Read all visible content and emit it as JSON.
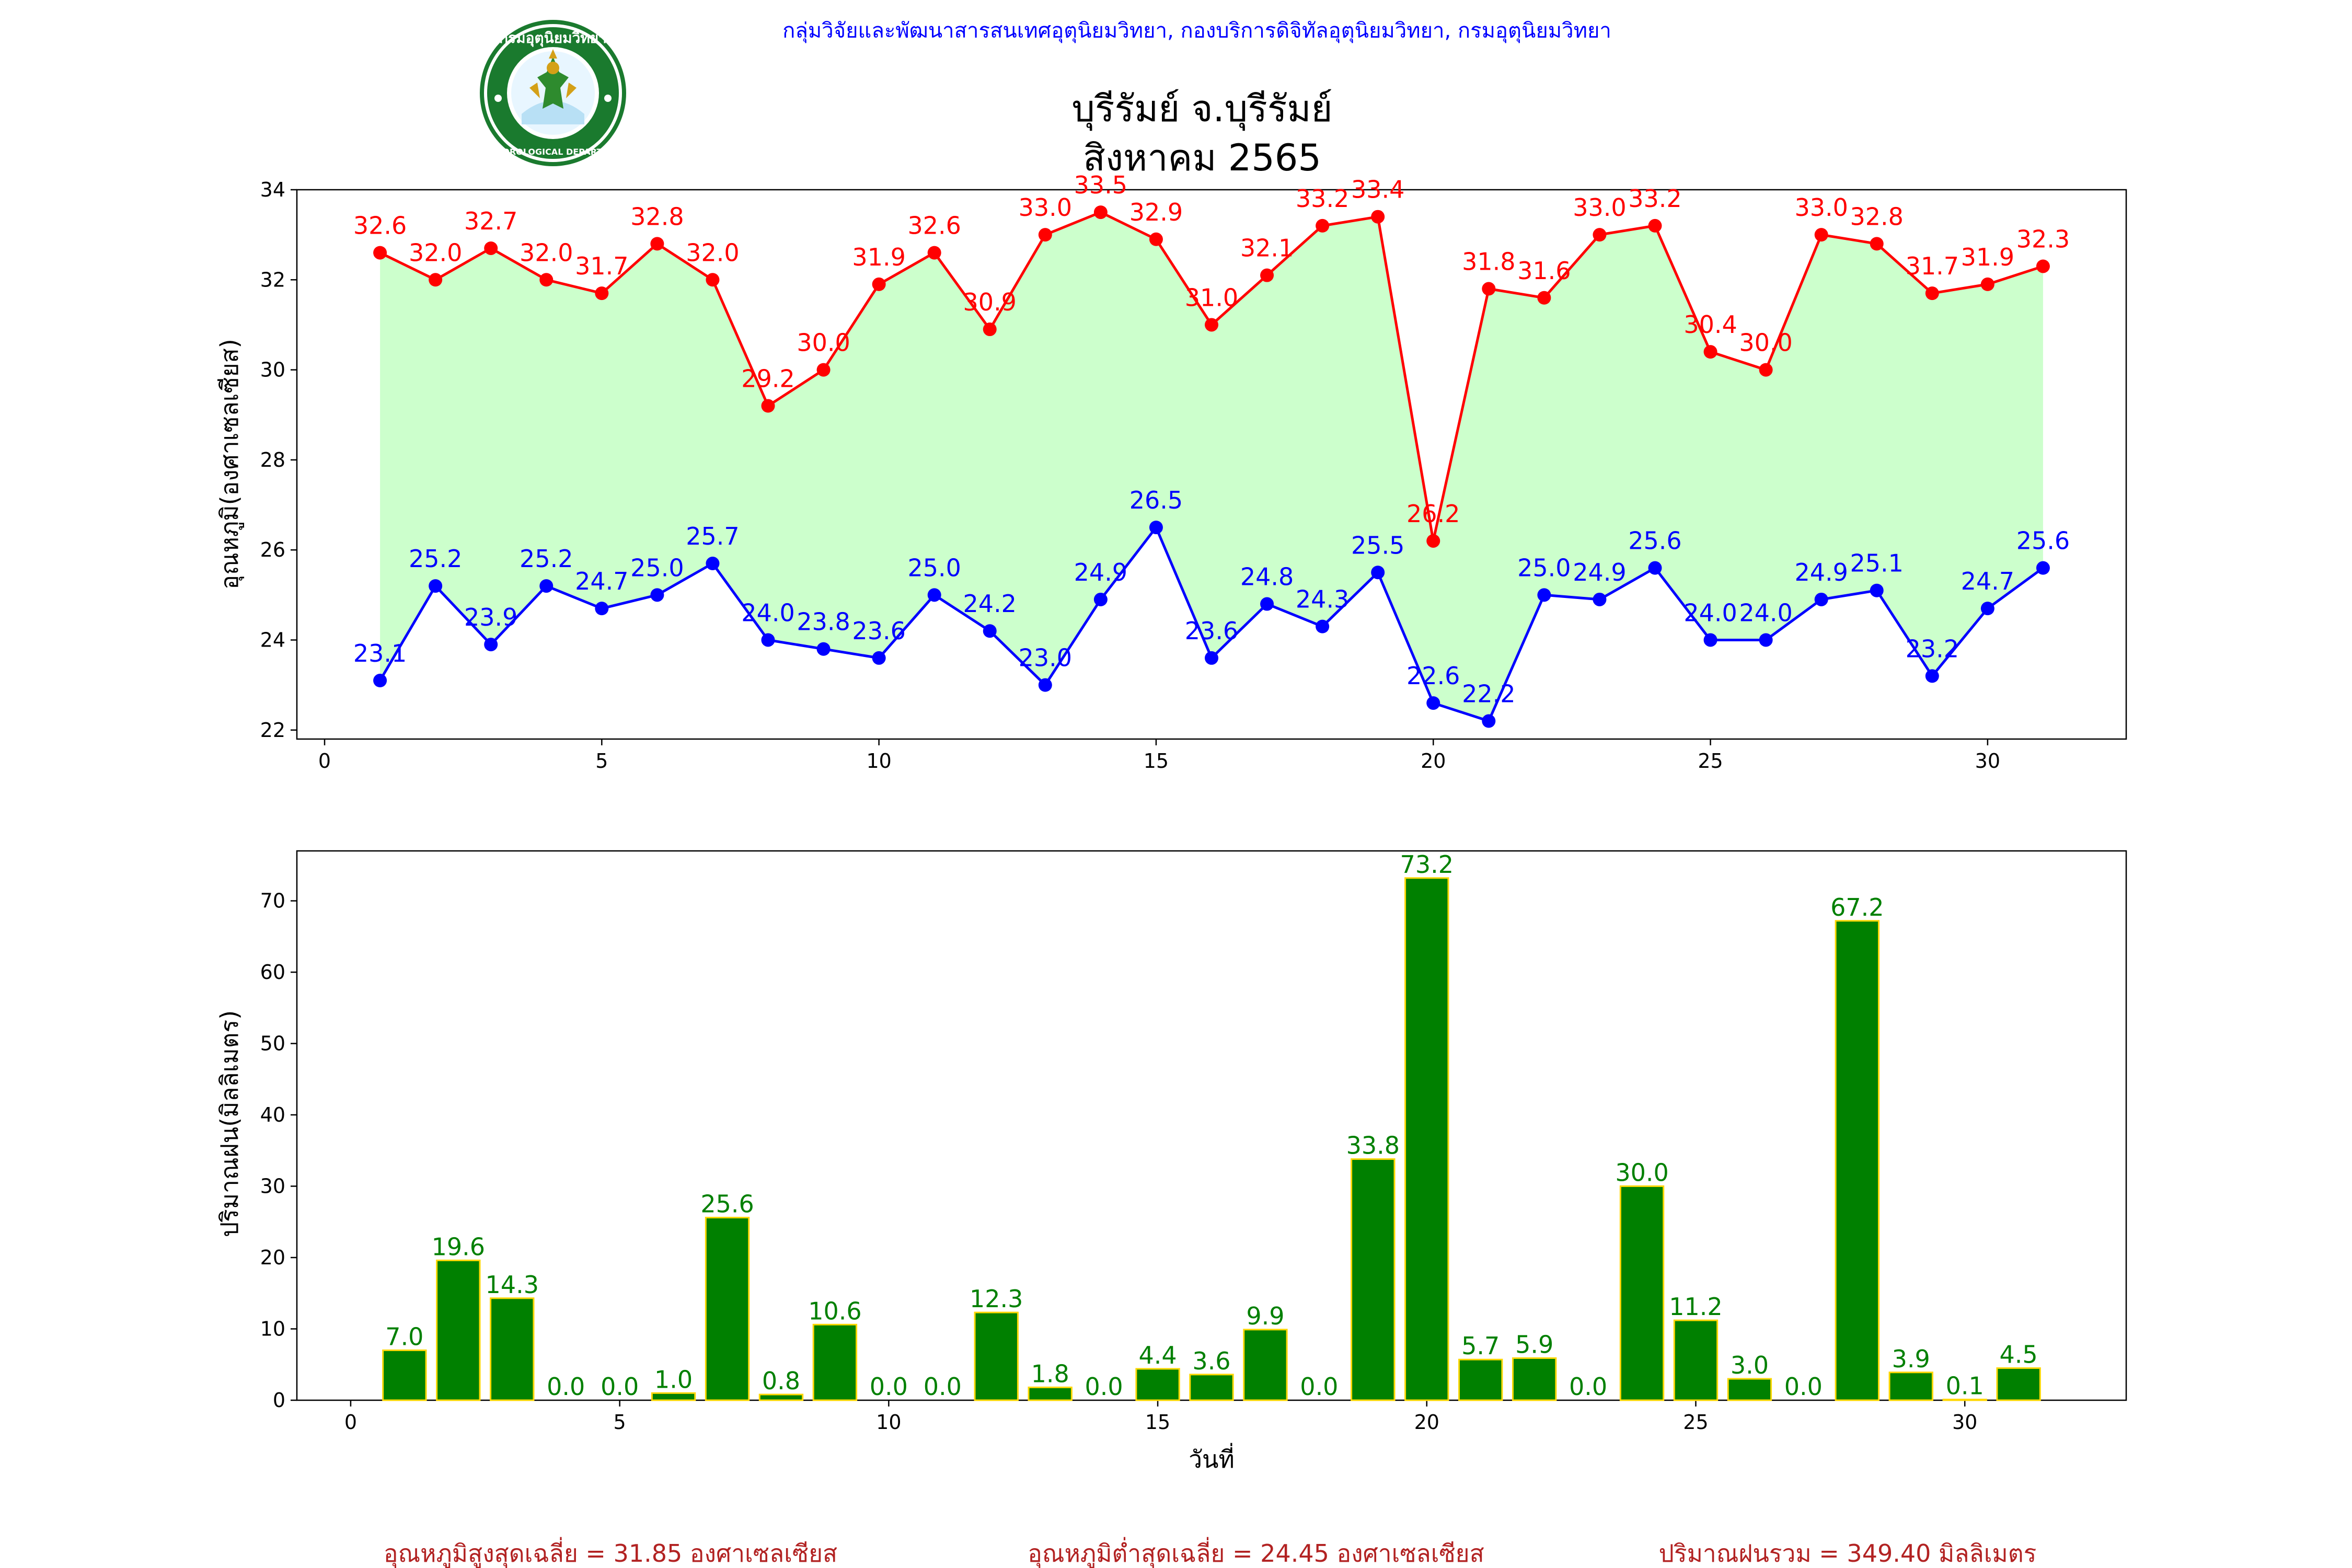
{
  "header": {
    "organization": "กลุ่มวิจัยและพัฒนาสารสนเทศอุตุนิยมวิทยา, กองบริการดิจิทัลอุตุนิยมวิทยา, กรมอุตุนิยมวิทยา",
    "title_line1": "บุรีรัมย์ จ.บุรีรัมย์",
    "title_line2": "สิงหาคม 2565",
    "logo_text_top": "กรมอุตุนิยมวิทยา",
    "logo_text_bottom": "METEOROLOGICAL DEPARTMENT"
  },
  "summary": {
    "avg_max": "อุณหภูมิสูงสุดเฉลี่ย = 31.85 องศาเซลเซียส",
    "avg_min": "อุณหภูมิต่ำสุดเฉลี่ย = 24.45 องศาเซลเซียส",
    "total_rain": "ปริมาณฝนรวม = 349.40 มิลลิเมตร"
  },
  "colors": {
    "max_line": "#ff0000",
    "min_line": "#0000ff",
    "fill": "#ccffcc",
    "bar": "#008000",
    "bar_edge": "#ffd700",
    "bar_label": "#008000",
    "header_text": "#0000ff",
    "summary_text": "#b22222"
  },
  "chart_data": [
    {
      "type": "line",
      "ylabel": "อุณหภูมิ(องศาเซลเซียส)",
      "xlabel": "",
      "xlim": [
        -0.5,
        32.5
      ],
      "ylim": [
        21.8,
        34
      ],
      "xticks": [
        0,
        5,
        10,
        15,
        20,
        25,
        30
      ],
      "yticks": [
        22,
        24,
        26,
        28,
        30,
        32,
        34
      ],
      "x": [
        1,
        2,
        3,
        4,
        5,
        6,
        7,
        8,
        9,
        10,
        11,
        12,
        13,
        14,
        15,
        16,
        17,
        18,
        19,
        20,
        21,
        22,
        23,
        24,
        25,
        26,
        27,
        28,
        29,
        30,
        31
      ],
      "series": [
        {
          "key": "max",
          "values": [
            32.6,
            32.0,
            32.7,
            32.0,
            31.7,
            32.8,
            32.0,
            29.2,
            30.0,
            31.9,
            32.6,
            30.9,
            33.0,
            33.5,
            32.9,
            31.0,
            32.1,
            33.2,
            33.4,
            26.2,
            31.8,
            31.6,
            33.0,
            33.2,
            30.4,
            30.0,
            33.0,
            32.8,
            31.7,
            31.9,
            32.3
          ]
        },
        {
          "key": "min",
          "values": [
            23.1,
            25.2,
            23.9,
            25.2,
            24.7,
            25.0,
            25.7,
            24.0,
            23.8,
            23.6,
            25.0,
            24.2,
            23.0,
            24.9,
            26.5,
            23.6,
            24.8,
            24.3,
            25.5,
            22.6,
            22.2,
            25.0,
            24.9,
            25.6,
            24.0,
            24.0,
            24.9,
            25.1,
            23.2,
            24.7,
            25.6
          ]
        }
      ]
    },
    {
      "type": "bar",
      "ylabel": "ปริมาณฝน(มิลลิเมตร)",
      "xlabel": "วันที่",
      "xlim": [
        -1,
        33
      ],
      "ylim": [
        0,
        77
      ],
      "xticks": [
        0,
        5,
        10,
        15,
        20,
        25,
        30
      ],
      "yticks": [
        0,
        10,
        20,
        30,
        40,
        50,
        60,
        70
      ],
      "categories": [
        1,
        2,
        3,
        4,
        5,
        6,
        7,
        8,
        9,
        10,
        11,
        12,
        13,
        14,
        15,
        16,
        17,
        18,
        19,
        20,
        21,
        22,
        23,
        24,
        25,
        26,
        27,
        28,
        29,
        30,
        31
      ],
      "values": [
        7.0,
        19.6,
        14.3,
        0.0,
        0.0,
        1.0,
        25.6,
        0.8,
        10.6,
        0.0,
        0.0,
        12.3,
        1.8,
        0.0,
        4.4,
        3.6,
        9.9,
        0.0,
        33.8,
        73.2,
        5.7,
        5.9,
        0.0,
        30.0,
        11.2,
        3.0,
        0.0,
        67.2,
        3.9,
        0.1,
        4.5
      ]
    }
  ]
}
